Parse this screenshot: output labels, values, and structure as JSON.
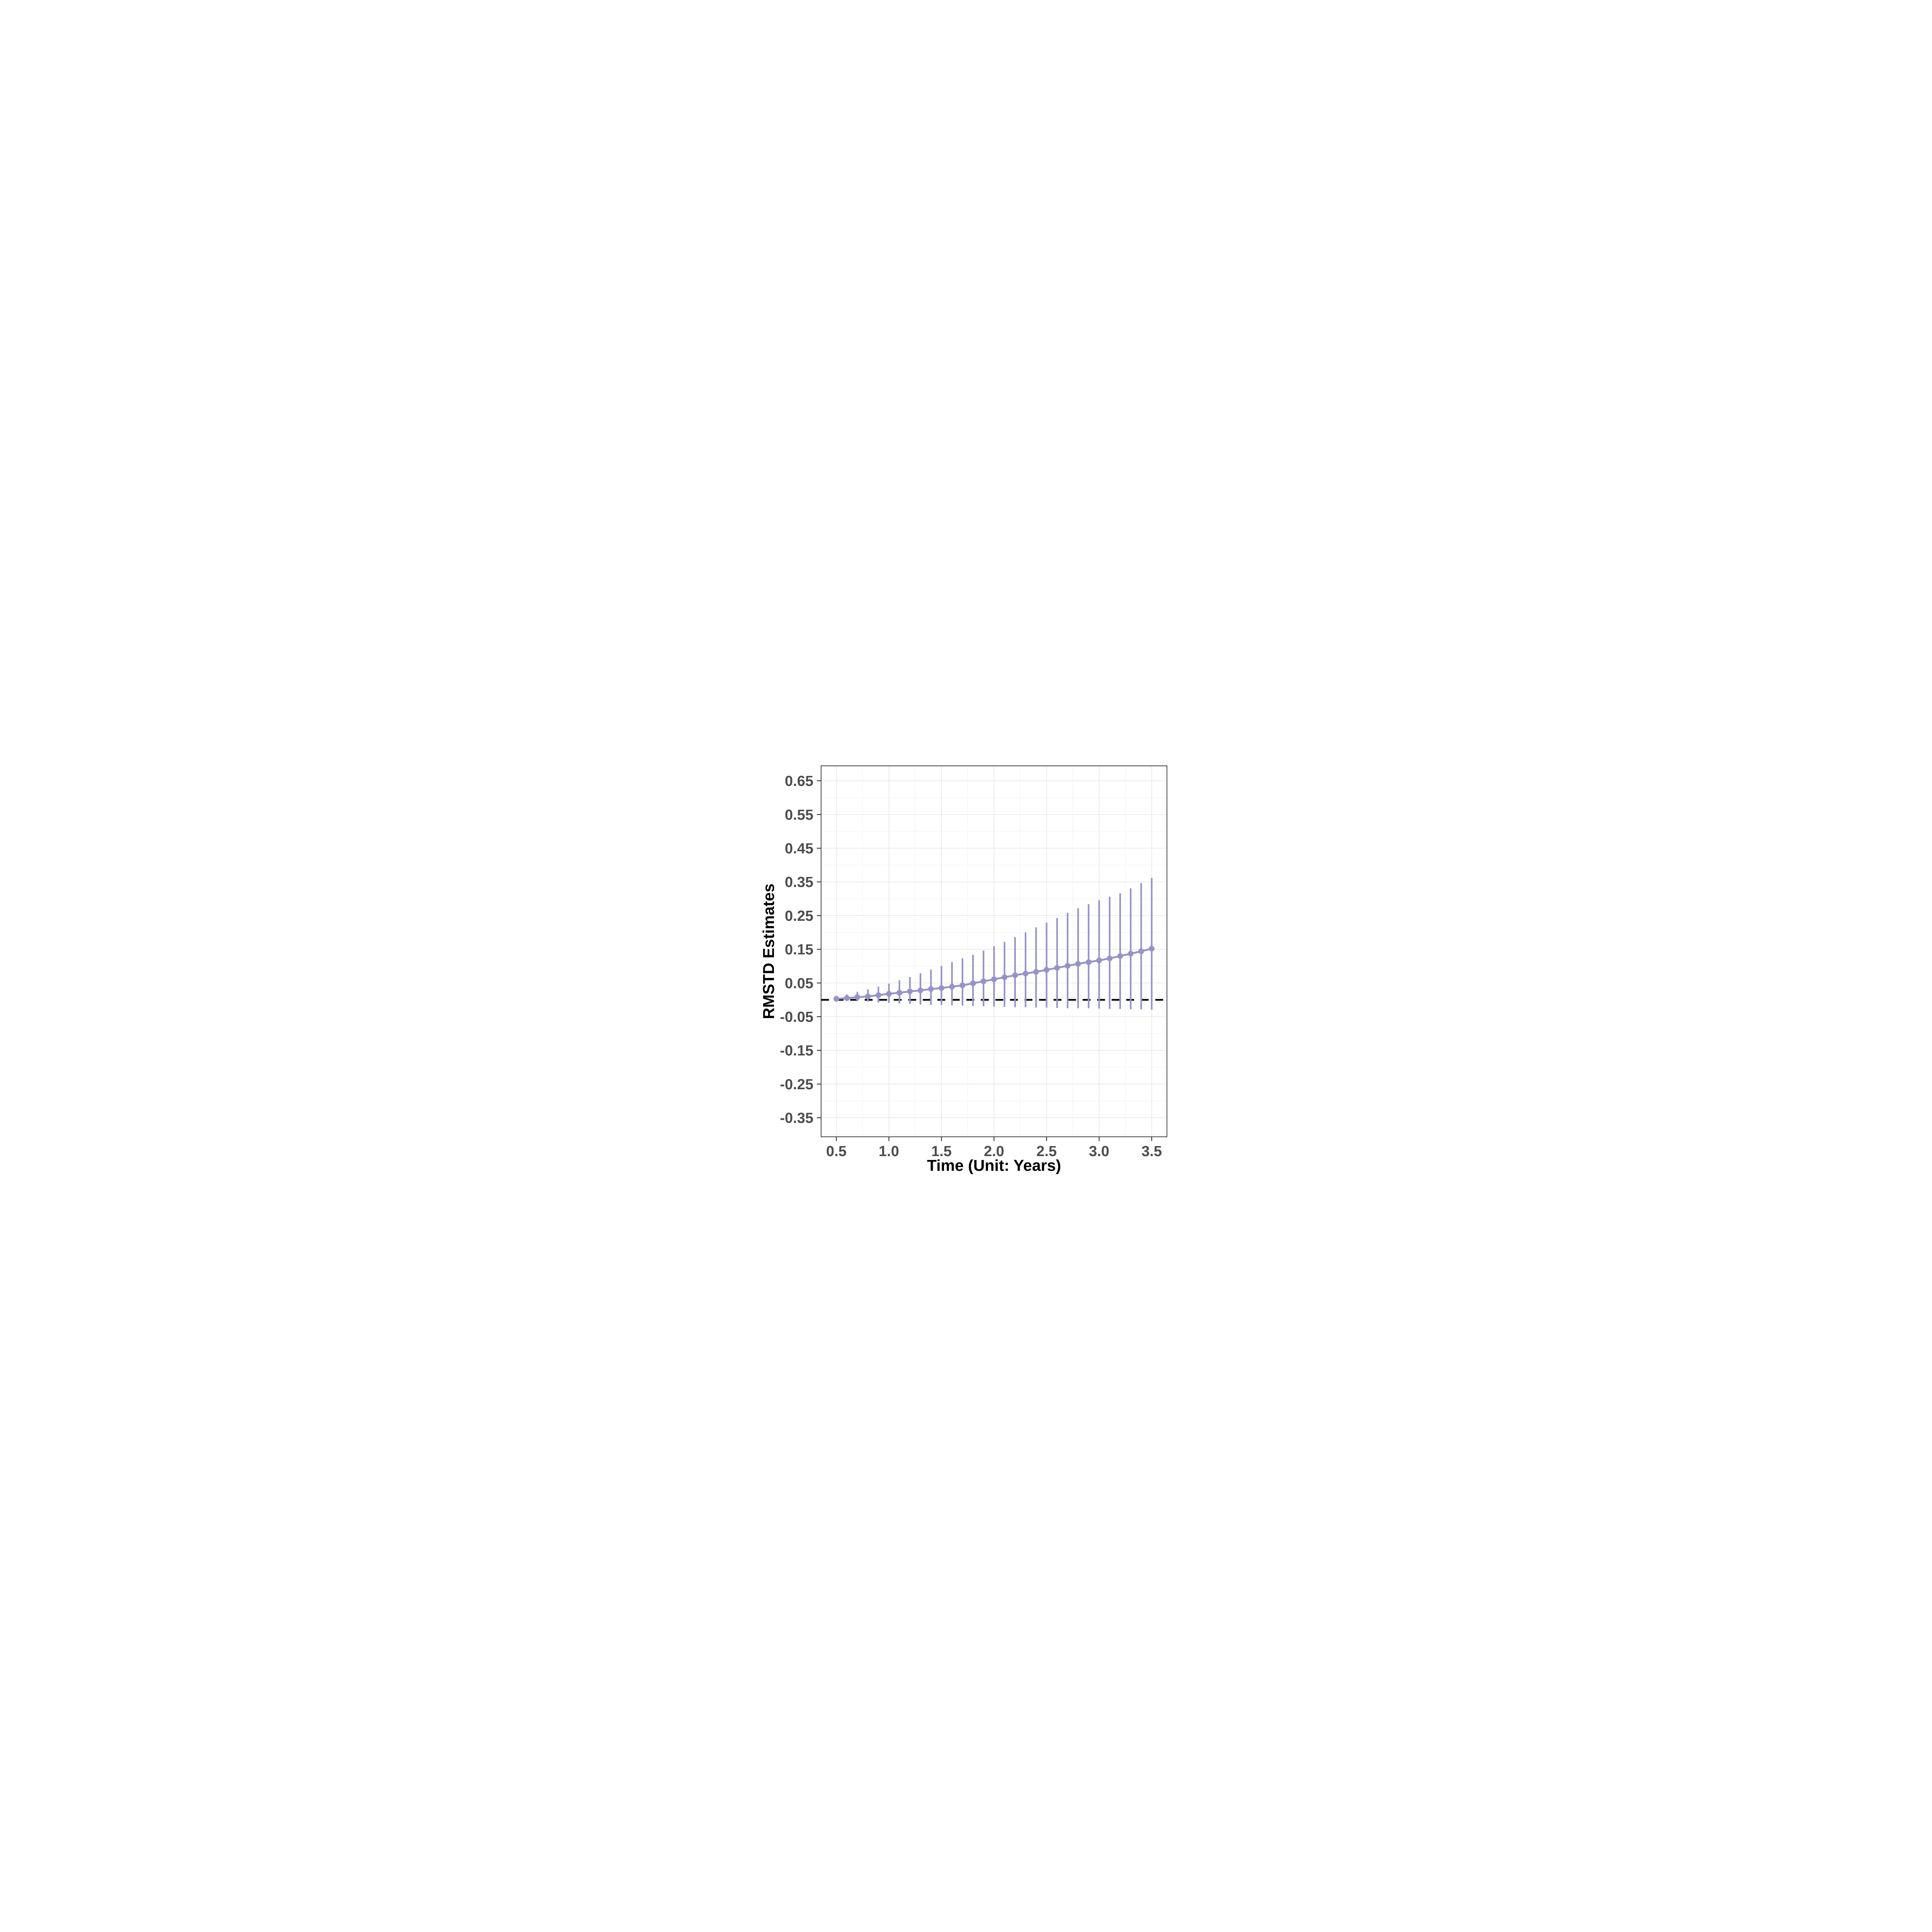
{
  "chart_data": {
    "type": "scatter",
    "subtype": "point-errorbar-line",
    "title": "",
    "xlabel": "Time (Unit: Years)",
    "ylabel": "RMSTD Estimates",
    "x_tick_labels": [
      "0.5",
      "1.0",
      "1.5",
      "2.0",
      "2.5",
      "3.0",
      "3.5"
    ],
    "y_tick_labels": [
      "0.65",
      "0.55",
      "0.45",
      "0.35",
      "0.25",
      "0.15",
      "0.05",
      "-0.05",
      "-0.15",
      "-0.25",
      "-0.35"
    ],
    "x_major_breaks": [
      0.5,
      1.0,
      1.5,
      2.0,
      2.5,
      3.0,
      3.5
    ],
    "x_minor_breaks": [
      0.75,
      1.25,
      1.75,
      2.25,
      2.75,
      3.25
    ],
    "y_major_breaks": [
      0.65,
      0.55,
      0.45,
      0.35,
      0.25,
      0.15,
      0.05,
      -0.05,
      -0.15,
      -0.25,
      -0.35
    ],
    "y_minor_breaks": [
      0.6,
      0.5,
      0.4,
      0.3,
      0.2,
      0.1,
      0.0,
      -0.1,
      -0.2,
      -0.3,
      -0.4
    ],
    "xlim": [
      0.355,
      3.645
    ],
    "ylim": [
      -0.4065,
      0.6945
    ],
    "grid": true,
    "legend_position": "none",
    "reference_line": {
      "y": 0,
      "style": "dashed",
      "color": "#000000"
    },
    "series": [
      {
        "name": "RMSTD estimate",
        "x": [
          0.5,
          0.6,
          0.7,
          0.8,
          0.9,
          1.0,
          1.1,
          1.2,
          1.3,
          1.4,
          1.5,
          1.6,
          1.7,
          1.8,
          1.9,
          2.0,
          2.1,
          2.2,
          2.3,
          2.4,
          2.5,
          2.6,
          2.7,
          2.8,
          2.9,
          3.0,
          3.1,
          3.2,
          3.3,
          3.4,
          3.5
        ],
        "y": [
          0.003,
          0.005,
          0.008,
          0.01,
          0.014,
          0.018,
          0.021,
          0.025,
          0.028,
          0.032,
          0.035,
          0.039,
          0.043,
          0.049,
          0.055,
          0.061,
          0.067,
          0.073,
          0.078,
          0.083,
          0.089,
          0.095,
          0.101,
          0.107,
          0.112,
          0.117,
          0.123,
          0.13,
          0.137,
          0.144,
          0.152
        ],
        "upper": [
          0.007,
          0.016,
          0.024,
          0.031,
          0.039,
          0.048,
          0.058,
          0.068,
          0.079,
          0.09,
          0.101,
          0.112,
          0.123,
          0.134,
          0.146,
          0.159,
          0.172,
          0.186,
          0.2,
          0.215,
          0.229,
          0.243,
          0.258,
          0.272,
          0.284,
          0.296,
          0.306,
          0.316,
          0.331,
          0.347,
          0.362
        ],
        "lower": [
          -0.002,
          -0.003,
          -0.004,
          -0.005,
          -0.008,
          -0.009,
          -0.011,
          -0.012,
          -0.014,
          -0.015,
          -0.015,
          -0.016,
          -0.017,
          -0.018,
          -0.019,
          -0.02,
          -0.021,
          -0.022,
          -0.022,
          -0.023,
          -0.023,
          -0.024,
          -0.025,
          -0.025,
          -0.025,
          -0.026,
          -0.027,
          -0.027,
          -0.028,
          -0.028,
          -0.029
        ],
        "color": "#9593C8"
      }
    ],
    "colors": {
      "series": "#9593C8",
      "reference_line": "#000000",
      "grid_major": "#E6E6E6",
      "grid_minor": "#F1F1F1",
      "panel_border": "#2F2F2F",
      "tick": "#333333",
      "tick_label": "#4D4D4D",
      "axis_title": "#000000",
      "panel_background": "#FFFFFF"
    }
  }
}
